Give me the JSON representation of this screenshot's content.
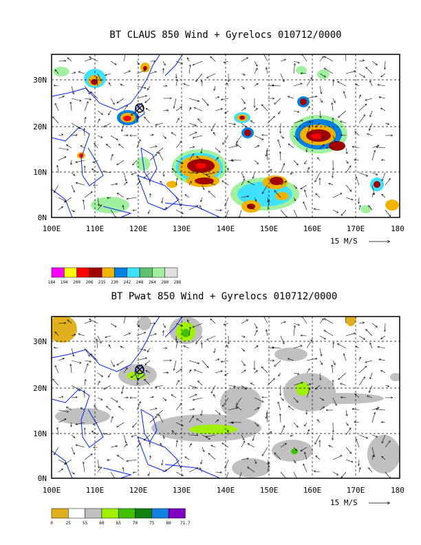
{
  "top_panel": {
    "title": "BT CLAUS 850 Wind + Gyrelocs 010712/0000",
    "x_ticks": [
      "100E",
      "110E",
      "120E",
      "130E",
      "140E",
      "150E",
      "160E",
      "170E",
      "180"
    ],
    "y_ticks": [
      "30N",
      "20N",
      "10N",
      "0N"
    ],
    "vector_ref_label": "15 M/S",
    "colorbar_labels": [
      "184",
      "194",
      "200",
      "206",
      "215",
      "230",
      "242",
      "248",
      "264",
      "280",
      "288"
    ],
    "colorbar_colors": [
      "#ff00ff",
      "#ffff00",
      "#ff0000",
      "#a00000",
      "#f0b400",
      "#0080e0",
      "#40e0ff",
      "#60c070",
      "#a0f0a0",
      "#e0e0e0"
    ]
  },
  "bottom_panel": {
    "title": "BT Pwat 850 Wind + Gyrelocs 010712/0000",
    "x_ticks": [
      "100E",
      "110E",
      "120E",
      "130E",
      "140E",
      "150E",
      "160E",
      "170E",
      "180"
    ],
    "y_ticks": [
      "30N",
      "20N",
      "10N",
      "0N"
    ],
    "vector_ref_label": "15 M/S",
    "colorbar_labels": [
      "0",
      "25",
      "55",
      "60",
      "65",
      "70",
      "75",
      "80",
      "71.7"
    ],
    "colorbar_colors": [
      "#e0b020",
      "#ffffff",
      "#c0c0c0",
      "#a0f000",
      "#40c000",
      "#108010",
      "#1080e0",
      "#8000c0"
    ]
  }
}
